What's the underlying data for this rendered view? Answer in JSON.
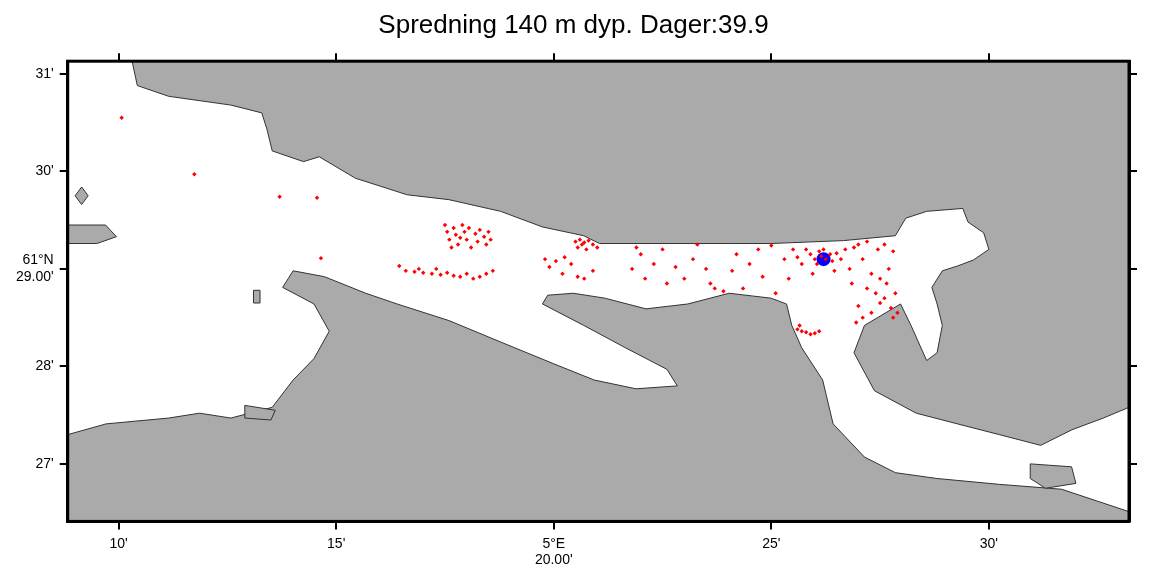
{
  "chart_data": {
    "type": "scatter",
    "title": "Spredning 140 m dyp. Dager:39.9",
    "xlim": [
      8.83,
      33.22
    ],
    "ylim": [
      26.41,
      31.13
    ],
    "xticks": [
      {
        "value": 10,
        "label": "10'"
      },
      {
        "value": 15,
        "label": "15'"
      },
      {
        "value": 20,
        "label": "5°E\n20.00'"
      },
      {
        "value": 25,
        "label": "25'"
      },
      {
        "value": 30,
        "label": "30'"
      }
    ],
    "yticks": [
      {
        "value": 27,
        "label": "27'"
      },
      {
        "value": 28,
        "label": "28'"
      },
      {
        "value": 29,
        "label": "61°N\n29.00'"
      },
      {
        "value": 30,
        "label": "30'"
      },
      {
        "value": 31,
        "label": "31'"
      }
    ],
    "grid": false,
    "water": [
      [
        8.83,
        31.13
      ],
      [
        10.31,
        31.13
      ],
      [
        10.43,
        30.88
      ],
      [
        11.15,
        30.77
      ],
      [
        12.58,
        30.68
      ],
      [
        13.29,
        30.6
      ],
      [
        13.41,
        30.43
      ],
      [
        13.53,
        30.21
      ],
      [
        14.25,
        30.1
      ],
      [
        14.61,
        30.15
      ],
      [
        15.44,
        29.93
      ],
      [
        16.63,
        29.76
      ],
      [
        17.59,
        29.71
      ],
      [
        18.78,
        29.59
      ],
      [
        19.74,
        29.43
      ],
      [
        20.69,
        29.34
      ],
      [
        21.05,
        29.26
      ],
      [
        24.03,
        29.26
      ],
      [
        24.99,
        29.26
      ],
      [
        26.66,
        29.29
      ],
      [
        27.85,
        29.34
      ],
      [
        28.09,
        29.52
      ],
      [
        28.57,
        29.59
      ],
      [
        29.4,
        29.62
      ],
      [
        29.52,
        29.48
      ],
      [
        29.88,
        29.37
      ],
      [
        30.0,
        29.2
      ],
      [
        29.64,
        29.09
      ],
      [
        29.28,
        29.03
      ],
      [
        28.93,
        28.98
      ],
      [
        28.69,
        28.81
      ],
      [
        28.81,
        28.64
      ],
      [
        28.93,
        28.42
      ],
      [
        28.81,
        28.14
      ],
      [
        28.57,
        28.06
      ],
      [
        28.21,
        28.42
      ],
      [
        27.97,
        28.64
      ],
      [
        27.14,
        28.42
      ],
      [
        26.9,
        28.14
      ],
      [
        27.37,
        27.75
      ],
      [
        28.33,
        27.52
      ],
      [
        29.28,
        27.41
      ],
      [
        30.24,
        27.3
      ],
      [
        31.19,
        27.19
      ],
      [
        31.91,
        27.35
      ],
      [
        32.63,
        27.47
      ],
      [
        33.22,
        27.58
      ],
      [
        33.22,
        26.51
      ],
      [
        31.67,
        26.74
      ],
      [
        30.24,
        26.79
      ],
      [
        28.81,
        26.85
      ],
      [
        27.85,
        26.91
      ],
      [
        27.14,
        27.07
      ],
      [
        26.42,
        27.41
      ],
      [
        26.18,
        27.86
      ],
      [
        25.7,
        28.19
      ],
      [
        25.47,
        28.42
      ],
      [
        25.35,
        28.64
      ],
      [
        24.99,
        28.7
      ],
      [
        24.03,
        28.75
      ],
      [
        23.08,
        28.64
      ],
      [
        22.12,
        28.59
      ],
      [
        21.17,
        28.7
      ],
      [
        20.45,
        28.75
      ],
      [
        19.86,
        28.73
      ],
      [
        19.74,
        28.64
      ],
      [
        20.69,
        28.42
      ],
      [
        21.65,
        28.19
      ],
      [
        22.6,
        27.97
      ],
      [
        22.84,
        27.8
      ],
      [
        21.89,
        27.77
      ],
      [
        20.93,
        27.86
      ],
      [
        19.98,
        28.03
      ],
      [
        18.78,
        28.25
      ],
      [
        17.59,
        28.47
      ],
      [
        16.4,
        28.64
      ],
      [
        15.68,
        28.75
      ],
      [
        14.73,
        28.92
      ],
      [
        14.01,
        28.98
      ],
      [
        13.77,
        28.81
      ],
      [
        14.49,
        28.64
      ],
      [
        14.84,
        28.36
      ],
      [
        14.49,
        28.08
      ],
      [
        14.01,
        27.86
      ],
      [
        13.53,
        27.58
      ],
      [
        12.58,
        27.47
      ],
      [
        11.86,
        27.52
      ],
      [
        11.15,
        27.47
      ],
      [
        9.71,
        27.41
      ],
      [
        8.83,
        27.3
      ]
    ],
    "land": [
      [
        [
          8.83,
          29.45
        ],
        [
          9.7,
          29.45
        ],
        [
          9.95,
          29.33
        ],
        [
          9.5,
          29.26
        ],
        [
          8.83,
          29.26
        ]
      ],
      [
        [
          9.15,
          29.84
        ],
        [
          9.3,
          29.75
        ],
        [
          9.15,
          29.66
        ],
        [
          9.0,
          29.75
        ]
      ],
      [
        [
          13.1,
          28.78
        ],
        [
          13.25,
          28.78
        ],
        [
          13.25,
          28.65
        ],
        [
          13.1,
          28.65
        ]
      ],
      [
        [
          12.9,
          27.6
        ],
        [
          13.6,
          27.55
        ],
        [
          13.5,
          27.45
        ],
        [
          12.9,
          27.47
        ]
      ],
      [
        [
          30.95,
          27.0
        ],
        [
          31.9,
          26.97
        ],
        [
          32.0,
          26.8
        ],
        [
          31.3,
          26.75
        ],
        [
          30.95,
          26.85
        ]
      ]
    ],
    "series": [
      {
        "color": "#ff0000",
        "marker": "diamond",
        "values": [
          [
            17.5,
            29.45
          ],
          [
            17.55,
            29.38
          ],
          [
            17.6,
            29.3
          ],
          [
            17.7,
            29.42
          ],
          [
            17.75,
            29.35
          ],
          [
            17.8,
            29.25
          ],
          [
            17.9,
            29.45
          ],
          [
            17.95,
            29.38
          ],
          [
            18.0,
            29.3
          ],
          [
            18.05,
            29.42
          ],
          [
            18.1,
            29.22
          ],
          [
            18.2,
            29.36
          ],
          [
            18.25,
            29.28
          ],
          [
            18.3,
            29.4
          ],
          [
            18.4,
            29.33
          ],
          [
            18.45,
            29.25
          ],
          [
            18.5,
            29.38
          ],
          [
            18.55,
            29.3
          ],
          [
            17.65,
            29.22
          ],
          [
            17.85,
            29.32
          ],
          [
            16.45,
            29.03
          ],
          [
            16.6,
            28.98
          ],
          [
            16.8,
            28.97
          ],
          [
            17.0,
            28.96
          ],
          [
            17.2,
            28.95
          ],
          [
            17.4,
            28.94
          ],
          [
            17.55,
            28.96
          ],
          [
            17.7,
            28.93
          ],
          [
            17.85,
            28.92
          ],
          [
            18.0,
            28.95
          ],
          [
            18.15,
            28.9
          ],
          [
            18.3,
            28.92
          ],
          [
            18.45,
            28.95
          ],
          [
            18.6,
            28.98
          ],
          [
            17.3,
            29.0
          ],
          [
            16.9,
            29.0
          ],
          [
            20.5,
            29.28
          ],
          [
            20.6,
            29.3
          ],
          [
            20.7,
            29.27
          ],
          [
            20.8,
            29.29
          ],
          [
            20.9,
            29.25
          ],
          [
            21.0,
            29.22
          ],
          [
            20.55,
            29.22
          ],
          [
            20.75,
            29.2
          ],
          [
            20.65,
            29.25
          ],
          [
            19.8,
            29.1
          ],
          [
            19.9,
            29.02
          ],
          [
            20.05,
            29.08
          ],
          [
            20.2,
            28.95
          ],
          [
            20.4,
            29.05
          ],
          [
            20.55,
            28.92
          ],
          [
            20.7,
            28.9
          ],
          [
            20.9,
            28.98
          ],
          [
            20.25,
            29.12
          ],
          [
            21.8,
            29.0
          ],
          [
            22.0,
            29.15
          ],
          [
            22.1,
            28.9
          ],
          [
            22.3,
            29.05
          ],
          [
            22.5,
            29.2
          ],
          [
            22.6,
            28.85
          ],
          [
            22.8,
            29.02
          ],
          [
            23.0,
            28.9
          ],
          [
            23.2,
            29.1
          ],
          [
            23.3,
            29.25
          ],
          [
            23.5,
            29.0
          ],
          [
            23.6,
            28.85
          ],
          [
            21.9,
            29.22
          ],
          [
            23.7,
            28.8
          ],
          [
            23.9,
            28.77
          ],
          [
            24.1,
            28.98
          ],
          [
            24.2,
            29.15
          ],
          [
            24.35,
            28.8
          ],
          [
            24.5,
            29.05
          ],
          [
            24.7,
            29.2
          ],
          [
            24.8,
            28.92
          ],
          [
            25.0,
            29.24
          ],
          [
            25.1,
            28.75
          ],
          [
            25.3,
            29.1
          ],
          [
            25.4,
            28.9
          ],
          [
            25.5,
            29.2
          ],
          [
            25.6,
            29.12
          ],
          [
            25.7,
            29.05
          ],
          [
            25.8,
            29.2
          ],
          [
            25.9,
            29.15
          ],
          [
            26.0,
            29.1
          ],
          [
            26.1,
            29.18
          ],
          [
            26.15,
            29.13
          ],
          [
            26.25,
            29.1
          ],
          [
            26.35,
            29.15
          ],
          [
            26.4,
            29.08
          ],
          [
            26.5,
            29.16
          ],
          [
            26.6,
            29.1
          ],
          [
            26.7,
            29.2
          ],
          [
            26.8,
            29.0
          ],
          [
            26.2,
            29.2
          ],
          [
            26.05,
            29.05
          ],
          [
            25.95,
            28.95
          ],
          [
            26.45,
            28.98
          ],
          [
            26.9,
            29.22
          ],
          [
            27.0,
            29.25
          ],
          [
            27.1,
            29.1
          ],
          [
            27.2,
            29.28
          ],
          [
            27.3,
            28.95
          ],
          [
            27.45,
            29.2
          ],
          [
            27.6,
            29.25
          ],
          [
            27.7,
            29.0
          ],
          [
            27.8,
            29.18
          ],
          [
            27.2,
            28.8
          ],
          [
            27.4,
            28.75
          ],
          [
            27.5,
            28.65
          ],
          [
            27.6,
            28.7
          ],
          [
            27.75,
            28.6
          ],
          [
            27.8,
            28.5
          ],
          [
            27.9,
            28.55
          ],
          [
            27.3,
            28.55
          ],
          [
            27.1,
            28.5
          ],
          [
            27.0,
            28.62
          ],
          [
            26.95,
            28.45
          ],
          [
            27.85,
            28.75
          ],
          [
            27.65,
            28.85
          ],
          [
            26.85,
            28.85
          ],
          [
            27.5,
            28.9
          ],
          [
            25.6,
            28.38
          ],
          [
            25.7,
            28.36
          ],
          [
            25.8,
            28.35
          ],
          [
            25.9,
            28.33
          ],
          [
            26.0,
            28.34
          ],
          [
            26.1,
            28.36
          ],
          [
            25.65,
            28.42
          ],
          [
            10.07,
            30.55
          ],
          [
            11.74,
            29.97
          ],
          [
            13.7,
            29.74
          ],
          [
            14.56,
            29.73
          ],
          [
            14.65,
            29.11
          ]
        ]
      },
      {
        "color": "#0000ff",
        "marker": "circle",
        "values": [
          [
            26.2,
            29.1
          ]
        ]
      }
    ]
  }
}
